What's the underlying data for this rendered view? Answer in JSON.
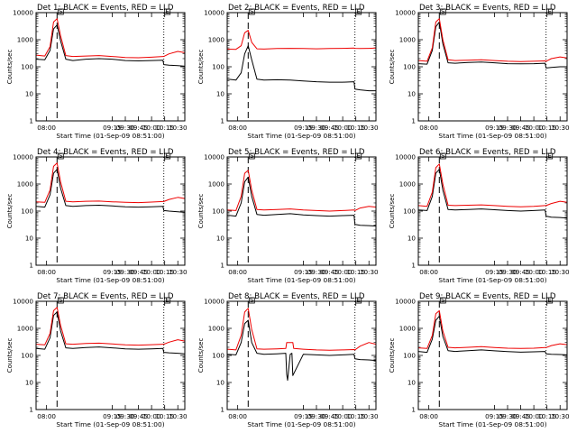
{
  "x_tick_labels": [
    "08:00",
    "09:15",
    "09:30",
    "09:45",
    "10:00",
    "10:15",
    "10:30"
  ],
  "y_tick_labels": [
    "1",
    "10",
    "100",
    "1000",
    "10000"
  ],
  "chart_data": [
    {
      "type": "line",
      "title": "Det 1: BLACK = Events, RED = LLD",
      "xlabel": "Start Time (01-Sep-09 08:51:00)",
      "ylabel": "Counts/sec",
      "y_scale": "log",
      "ylim": [
        1,
        10000
      ],
      "x_units": "minutes after 08:00",
      "xlim": [
        -12,
        158
      ],
      "markers": {
        "dashed_line": 12,
        "dotted_line": 134,
        "flag_labels": [
          "S",
          "E"
        ]
      },
      "series": [
        {
          "color": "#000000",
          "x": [
            -12,
            -2,
            4,
            8,
            12,
            16,
            22,
            30,
            45,
            60,
            75,
            90,
            105,
            120,
            133,
            134,
            140,
            150,
            158
          ],
          "y": [
            190,
            180,
            400,
            2500,
            3500,
            900,
            190,
            170,
            190,
            200,
            190,
            170,
            165,
            170,
            175,
            120,
            115,
            110,
            105
          ]
        },
        {
          "color": "#ee0000",
          "x": [
            -12,
            -2,
            4,
            8,
            12,
            16,
            22,
            30,
            45,
            60,
            75,
            90,
            105,
            120,
            133,
            134,
            140,
            150,
            158
          ],
          "y": [
            270,
            250,
            550,
            4500,
            6000,
            1400,
            260,
            240,
            250,
            260,
            240,
            220,
            215,
            225,
            240,
            240,
            300,
            370,
            330
          ]
        }
      ]
    },
    {
      "type": "line",
      "title": "Det 2: BLACK = Events, RED = LLD",
      "xlabel": "Start Time (01-Sep-09 08:51:00)",
      "ylabel": "Counts/sec",
      "y_scale": "log",
      "ylim": [
        1,
        10000
      ],
      "x_units": "minutes after 08:00",
      "xlim": [
        -12,
        158
      ],
      "markers": {
        "dashed_line": 12,
        "dotted_line": 134,
        "flag_labels": [
          "S",
          "E"
        ]
      },
      "series": [
        {
          "color": "#000000",
          "x": [
            -12,
            -2,
            4,
            8,
            12,
            16,
            22,
            30,
            45,
            60,
            75,
            90,
            105,
            120,
            133,
            134,
            140,
            150,
            158
          ],
          "y": [
            35,
            32,
            60,
            300,
            600,
            180,
            35,
            32,
            33,
            32,
            30,
            28,
            27,
            27,
            28,
            15,
            14,
            13,
            13
          ]
        },
        {
          "color": "#ee0000",
          "x": [
            -12,
            -2,
            4,
            8,
            12,
            16,
            22,
            30,
            45,
            60,
            75,
            90,
            105,
            120,
            133,
            134,
            140,
            150,
            158
          ],
          "y": [
            450,
            440,
            600,
            1800,
            2200,
            800,
            460,
            450,
            470,
            480,
            470,
            460,
            470,
            480,
            490,
            480,
            470,
            480,
            490
          ]
        }
      ]
    },
    {
      "type": "line",
      "title": "Det 3: BLACK = Events, RED = LLD",
      "xlabel": "Start Time (01-Sep-09 08:51:00)",
      "ylabel": "Counts/sec",
      "y_scale": "log",
      "ylim": [
        1,
        10000
      ],
      "x_units": "minutes after 08:00",
      "xlim": [
        -12,
        158
      ],
      "markers": {
        "dashed_line": 12,
        "dotted_line": 134,
        "flag_labels": [
          "S",
          "E"
        ]
      },
      "series": [
        {
          "color": "#000000",
          "x": [
            -12,
            -2,
            4,
            8,
            12,
            16,
            22,
            30,
            45,
            60,
            75,
            90,
            105,
            120,
            133,
            134,
            140,
            150,
            158
          ],
          "y": [
            130,
            125,
            400,
            3000,
            4500,
            700,
            140,
            135,
            145,
            150,
            140,
            130,
            128,
            130,
            135,
            90,
            95,
            100,
            100
          ]
        },
        {
          "color": "#ee0000",
          "x": [
            -12,
            -2,
            4,
            8,
            12,
            16,
            22,
            30,
            45,
            60,
            75,
            90,
            105,
            120,
            133,
            134,
            140,
            150,
            158
          ],
          "y": [
            170,
            160,
            500,
            4500,
            6000,
            1000,
            180,
            170,
            175,
            180,
            170,
            160,
            155,
            160,
            165,
            160,
            200,
            230,
            210
          ]
        }
      ]
    },
    {
      "type": "line",
      "title": "Det 4: BLACK = Events, RED = LLD",
      "xlabel": "Start Time (01-Sep-09 08:51:00)",
      "ylabel": "Counts/sec",
      "y_scale": "log",
      "ylim": [
        1,
        10000
      ],
      "x_units": "minutes after 08:00",
      "xlim": [
        -12,
        158
      ],
      "markers": {
        "dashed_line": 12,
        "dotted_line": 134,
        "flag_labels": [
          "S",
          "E"
        ]
      },
      "series": [
        {
          "color": "#000000",
          "x": [
            -12,
            -2,
            4,
            8,
            12,
            16,
            22,
            30,
            45,
            60,
            75,
            90,
            105,
            120,
            133,
            134,
            140,
            150,
            158
          ],
          "y": [
            150,
            140,
            400,
            2500,
            3500,
            700,
            160,
            150,
            160,
            165,
            155,
            145,
            140,
            145,
            150,
            105,
            100,
            95,
            90
          ]
        },
        {
          "color": "#ee0000",
          "x": [
            -12,
            -2,
            4,
            8,
            12,
            16,
            22,
            30,
            45,
            60,
            75,
            90,
            105,
            120,
            133,
            134,
            140,
            150,
            158
          ],
          "y": [
            220,
            210,
            600,
            4500,
            6000,
            1200,
            230,
            220,
            230,
            235,
            220,
            210,
            205,
            215,
            225,
            225,
            270,
            320,
            290
          ]
        }
      ]
    },
    {
      "type": "line",
      "title": "Det 5: BLACK = Events, RED = LLD",
      "xlabel": "Start Time (01-Sep-09 08:51:00)",
      "ylabel": "Counts/sec",
      "y_scale": "log",
      "ylim": [
        1,
        10000
      ],
      "x_units": "minutes after 08:00",
      "xlim": [
        -12,
        158
      ],
      "markers": {
        "dashed_line": 12,
        "dotted_line": 134,
        "flag_labels": [
          "S",
          "E"
        ]
      },
      "series": [
        {
          "color": "#000000",
          "x": [
            -12,
            -2,
            4,
            8,
            12,
            16,
            22,
            30,
            45,
            60,
            75,
            90,
            105,
            120,
            133,
            134,
            140,
            150,
            158
          ],
          "y": [
            70,
            65,
            200,
            1200,
            1800,
            350,
            75,
            70,
            75,
            80,
            72,
            68,
            65,
            68,
            70,
            32,
            30,
            29,
            28
          ]
        },
        {
          "color": "#ee0000",
          "x": [
            -12,
            -2,
            4,
            8,
            12,
            16,
            22,
            30,
            45,
            60,
            75,
            90,
            105,
            120,
            133,
            134,
            140,
            150,
            158
          ],
          "y": [
            110,
            105,
            350,
            2500,
            3200,
            600,
            115,
            110,
            115,
            120,
            110,
            105,
            100,
            105,
            110,
            105,
            130,
            150,
            140
          ]
        }
      ]
    },
    {
      "type": "line",
      "title": "Det 6: BLACK = Events, RED = LLD",
      "xlabel": "Start Time (01-Sep-09 08:51:00)",
      "ylabel": "Counts/sec",
      "y_scale": "log",
      "ylim": [
        1,
        10000
      ],
      "x_units": "minutes after 08:00",
      "xlim": [
        -12,
        158
      ],
      "markers": {
        "dashed_line": 12,
        "dotted_line": 134,
        "flag_labels": [
          "S",
          "E"
        ]
      },
      "series": [
        {
          "color": "#000000",
          "x": [
            -12,
            -2,
            4,
            8,
            12,
            16,
            22,
            30,
            45,
            60,
            75,
            90,
            105,
            120,
            133,
            134,
            140,
            150,
            158
          ],
          "y": [
            110,
            105,
            350,
            2500,
            3500,
            600,
            115,
            110,
            115,
            120,
            112,
            105,
            100,
            105,
            110,
            65,
            60,
            58,
            55
          ]
        },
        {
          "color": "#ee0000",
          "x": [
            -12,
            -2,
            4,
            8,
            12,
            16,
            22,
            30,
            45,
            60,
            75,
            90,
            105,
            120,
            133,
            134,
            140,
            150,
            158
          ],
          "y": [
            160,
            150,
            500,
            4000,
            5500,
            1000,
            165,
            160,
            165,
            170,
            160,
            150,
            145,
            150,
            160,
            160,
            190,
            230,
            210
          ]
        }
      ]
    },
    {
      "type": "line",
      "title": "Det 7: BLACK = Events, RED = LLD",
      "xlabel": "Start Time (01-Sep-09 08:51:00)",
      "ylabel": "Counts/sec",
      "y_scale": "log",
      "ylim": [
        1,
        10000
      ],
      "x_units": "minutes after 08:00",
      "xlim": [
        -12,
        158
      ],
      "markers": {
        "dashed_line": 12,
        "dotted_line": 134,
        "flag_labels": [
          "S",
          "E"
        ]
      },
      "series": [
        {
          "color": "#000000",
          "x": [
            -12,
            -2,
            4,
            8,
            12,
            16,
            22,
            30,
            45,
            60,
            75,
            90,
            105,
            120,
            133,
            134,
            140,
            150,
            158
          ],
          "y": [
            180,
            170,
            450,
            3000,
            4000,
            800,
            190,
            180,
            195,
            205,
            190,
            175,
            170,
            175,
            180,
            130,
            125,
            120,
            115
          ]
        },
        {
          "color": "#ee0000",
          "x": [
            -12,
            -2,
            4,
            8,
            12,
            16,
            22,
            30,
            45,
            60,
            75,
            90,
            105,
            120,
            133,
            134,
            140,
            150,
            158
          ],
          "y": [
            260,
            245,
            650,
            4500,
            6000,
            1300,
            270,
            260,
            275,
            285,
            265,
            245,
            240,
            250,
            260,
            260,
            310,
            380,
            340
          ]
        }
      ]
    },
    {
      "type": "line",
      "title": "Det 8: BLACK = Events, RED = LLD",
      "xlabel": "Start Time (01-Sep-09 08:51:00)",
      "ylabel": "Counts/sec",
      "y_scale": "log",
      "ylim": [
        1,
        10000
      ],
      "x_units": "minutes after 08:00",
      "xlim": [
        -12,
        158
      ],
      "markers": {
        "dashed_line": 12,
        "dotted_line": 134,
        "flag_labels": [
          "S",
          "E"
        ]
      },
      "series": [
        {
          "color": "#000000",
          "x": [
            -12,
            -2,
            4,
            8,
            12,
            16,
            22,
            30,
            45,
            55,
            56,
            57,
            60,
            62,
            63,
            75,
            90,
            105,
            120,
            133,
            134,
            140,
            150,
            158
          ],
          "y": [
            110,
            105,
            300,
            1500,
            2000,
            300,
            120,
            110,
            115,
            120,
            20,
            12,
            110,
            120,
            18,
            110,
            105,
            100,
            105,
            110,
            75,
            70,
            68,
            65
          ]
        },
        {
          "color": "#ee0000",
          "x": [
            -12,
            -2,
            4,
            8,
            12,
            16,
            22,
            30,
            45,
            55,
            56,
            63,
            64,
            75,
            90,
            105,
            120,
            133,
            134,
            140,
            150,
            158
          ],
          "y": [
            170,
            160,
            550,
            4000,
            5500,
            900,
            175,
            170,
            175,
            180,
            300,
            300,
            180,
            170,
            160,
            155,
            160,
            165,
            160,
            220,
            300,
            260
          ]
        }
      ]
    },
    {
      "type": "line",
      "title": "Det 9: BLACK = Events, RED = LLD",
      "xlabel": "Start Time (01-Sep-09 08:51:00)",
      "ylabel": "Counts/sec",
      "y_scale": "log",
      "ylim": [
        1,
        10000
      ],
      "x_units": "minutes after 08:00",
      "xlim": [
        -12,
        158
      ],
      "markers": {
        "dashed_line": 12,
        "dotted_line": 134,
        "flag_labels": [
          "S",
          "E"
        ]
      },
      "series": [
        {
          "color": "#000000",
          "x": [
            -12,
            -2,
            4,
            8,
            12,
            16,
            22,
            30,
            45,
            60,
            75,
            90,
            105,
            120,
            133,
            134,
            140,
            150,
            158
          ],
          "y": [
            140,
            130,
            400,
            2000,
            2800,
            500,
            150,
            140,
            150,
            160,
            148,
            138,
            132,
            136,
            140,
            115,
            110,
            108,
            105
          ]
        },
        {
          "color": "#ee0000",
          "x": [
            -12,
            -2,
            4,
            8,
            12,
            16,
            22,
            30,
            45,
            60,
            75,
            90,
            105,
            120,
            133,
            134,
            140,
            150,
            158
          ],
          "y": [
            190,
            180,
            550,
            3500,
            4500,
            800,
            200,
            190,
            200,
            210,
            195,
            185,
            180,
            185,
            195,
            195,
            230,
            270,
            250
          ]
        }
      ]
    }
  ]
}
